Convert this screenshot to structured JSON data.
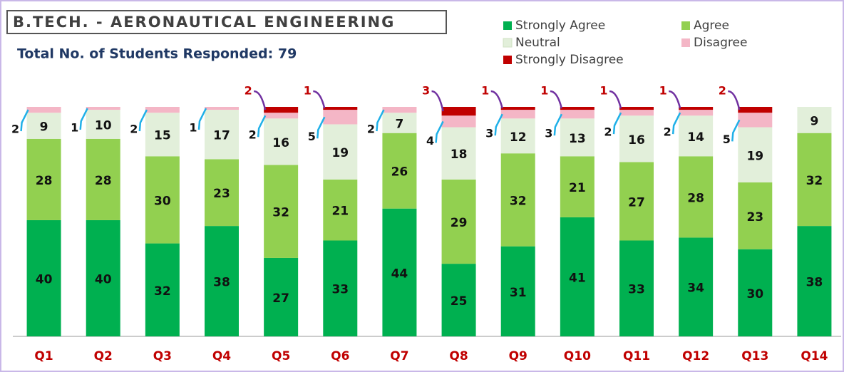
{
  "chart_data": {
    "type": "stacked_bar",
    "title": "B.TECH. - AERONAUTICAL ENGINEERING",
    "subtitle": "Total No. of Students Responded:  79",
    "categories": [
      "Q1",
      "Q2",
      "Q3",
      "Q4",
      "Q5",
      "Q6",
      "Q7",
      "Q8",
      "Q9",
      "Q10",
      "Q11",
      "Q12",
      "Q13",
      "Q14"
    ],
    "series": [
      {
        "name": "Strongly Agree",
        "color": "#00b050",
        "values": [
          40,
          40,
          32,
          38,
          27,
          33,
          44,
          25,
          31,
          41,
          33,
          34,
          30,
          38
        ]
      },
      {
        "name": "Agree",
        "color": "#92d050",
        "values": [
          28,
          28,
          30,
          23,
          32,
          21,
          26,
          29,
          32,
          21,
          27,
          28,
          23,
          32
        ]
      },
      {
        "name": "Neutral",
        "color": "#e2efda",
        "values": [
          9,
          10,
          15,
          17,
          16,
          19,
          7,
          18,
          12,
          13,
          16,
          14,
          19,
          9
        ]
      },
      {
        "name": "Disagree",
        "color": "#f4b6c6",
        "values": [
          2,
          1,
          2,
          1,
          2,
          5,
          2,
          4,
          3,
          3,
          2,
          2,
          5,
          0
        ]
      },
      {
        "name": "Strongly Disagree",
        "color": "#c00000",
        "values": [
          0,
          0,
          0,
          0,
          2,
          1,
          0,
          3,
          1,
          1,
          1,
          1,
          2,
          0
        ]
      }
    ]
  }
}
